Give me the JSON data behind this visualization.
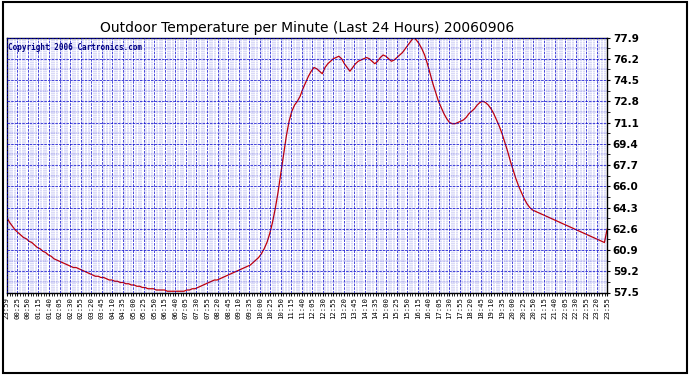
{
  "title": "Outdoor Temperature per Minute (Last 24 Hours) 20060906",
  "copyright_text": "Copyright 2006 Cartronics.com",
  "background_color": "#ffffff",
  "plot_bg_color": "#ffffff",
  "line_color": "#cc0000",
  "grid_color": "#0000cc",
  "border_color": "#000000",
  "title_color": "#000000",
  "yticks": [
    57.5,
    59.2,
    60.9,
    62.6,
    64.3,
    66.0,
    67.7,
    69.4,
    71.1,
    72.8,
    74.5,
    76.2,
    77.9
  ],
  "ylim": [
    57.5,
    77.9
  ],
  "xtick_labels": [
    "23:59",
    "00:25",
    "00:50",
    "01:15",
    "01:40",
    "02:05",
    "02:30",
    "02:55",
    "03:20",
    "03:45",
    "04:10",
    "04:35",
    "05:00",
    "05:25",
    "05:50",
    "06:15",
    "06:40",
    "07:05",
    "07:30",
    "07:55",
    "08:20",
    "08:45",
    "09:10",
    "09:35",
    "10:00",
    "10:25",
    "10:50",
    "11:15",
    "11:40",
    "12:05",
    "12:30",
    "12:55",
    "13:20",
    "13:45",
    "14:10",
    "14:35",
    "15:00",
    "15:25",
    "15:50",
    "16:15",
    "16:40",
    "17:05",
    "17:30",
    "17:55",
    "18:20",
    "18:45",
    "19:10",
    "19:35",
    "20:00",
    "20:25",
    "20:50",
    "21:15",
    "21:40",
    "22:05",
    "22:30",
    "22:55",
    "23:20",
    "23:55"
  ],
  "temperature_data": [
    63.5,
    63.1,
    62.8,
    62.5,
    62.3,
    62.1,
    61.9,
    61.8,
    61.6,
    61.5,
    61.3,
    61.1,
    61.0,
    60.8,
    60.7,
    60.5,
    60.4,
    60.2,
    60.1,
    60.0,
    59.9,
    59.8,
    59.7,
    59.6,
    59.5,
    59.5,
    59.4,
    59.3,
    59.2,
    59.1,
    59.0,
    58.9,
    58.8,
    58.8,
    58.7,
    58.7,
    58.6,
    58.5,
    58.5,
    58.4,
    58.4,
    58.3,
    58.3,
    58.2,
    58.2,
    58.1,
    58.1,
    58.0,
    58.0,
    57.9,
    57.9,
    57.8,
    57.8,
    57.8,
    57.7,
    57.7,
    57.7,
    57.7,
    57.6,
    57.6,
    57.6,
    57.6,
    57.6,
    57.6,
    57.6,
    57.7,
    57.7,
    57.8,
    57.8,
    57.9,
    58.0,
    58.1,
    58.2,
    58.3,
    58.4,
    58.5,
    58.5,
    58.6,
    58.7,
    58.8,
    58.9,
    59.0,
    59.1,
    59.2,
    59.3,
    59.4,
    59.5,
    59.6,
    59.7,
    59.9,
    60.1,
    60.3,
    60.6,
    61.0,
    61.5,
    62.2,
    63.1,
    64.2,
    65.5,
    67.0,
    68.5,
    70.0,
    71.2,
    72.0,
    72.5,
    72.8,
    73.2,
    73.8,
    74.3,
    74.8,
    75.2,
    75.5,
    75.4,
    75.2,
    75.0,
    75.5,
    75.8,
    76.0,
    76.2,
    76.3,
    76.4,
    76.2,
    75.8,
    75.5,
    75.2,
    75.5,
    75.8,
    76.0,
    76.1,
    76.2,
    76.3,
    76.2,
    76.0,
    75.8,
    76.0,
    76.3,
    76.5,
    76.4,
    76.2,
    76.0,
    76.1,
    76.3,
    76.5,
    76.7,
    77.0,
    77.3,
    77.6,
    77.9,
    77.7,
    77.4,
    77.0,
    76.5,
    75.8,
    75.0,
    74.2,
    73.5,
    72.8,
    72.3,
    71.8,
    71.4,
    71.1,
    71.0,
    71.0,
    71.1,
    71.2,
    71.3,
    71.5,
    71.8,
    72.0,
    72.2,
    72.5,
    72.7,
    72.8,
    72.7,
    72.5,
    72.2,
    71.8,
    71.3,
    70.8,
    70.2,
    69.5,
    68.8,
    68.0,
    67.3,
    66.6,
    66.0,
    65.5,
    65.0,
    64.6,
    64.3,
    64.1,
    64.0,
    63.9,
    63.8,
    63.7,
    63.6,
    63.5,
    63.4,
    63.3,
    63.2,
    63.1,
    63.0,
    62.9,
    62.8,
    62.7,
    62.6,
    62.5,
    62.4,
    62.3,
    62.2,
    62.1,
    62.0,
    61.9,
    61.8,
    61.7,
    61.6,
    61.5,
    62.6
  ]
}
